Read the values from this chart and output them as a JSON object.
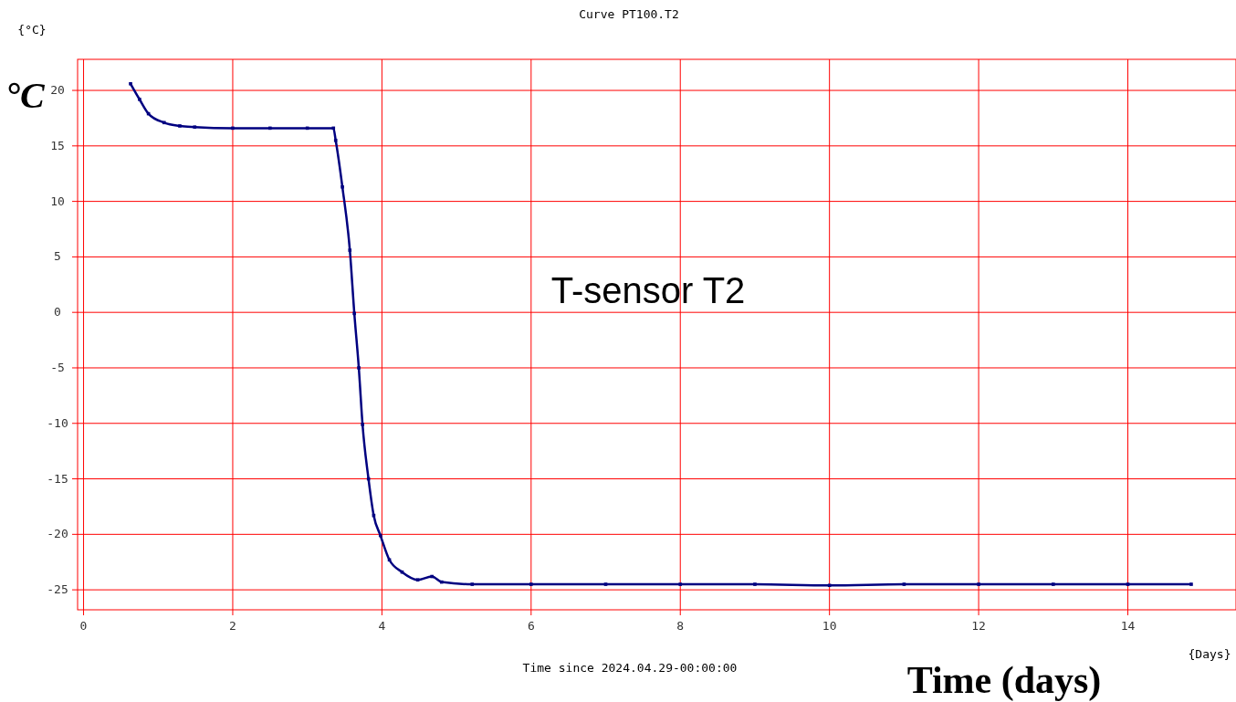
{
  "chart_data": {
    "type": "line",
    "title": "Curve PT100.T2",
    "xlabel": "Time since 2024.04.29-00:00:00",
    "ylabel": "{°C}",
    "annotations": [
      "{Days}",
      "°C",
      "T-sensor T2",
      "Time (days)"
    ],
    "x": [
      0.63,
      0.75,
      0.87,
      1.08,
      1.29,
      1.49,
      2.0,
      2.5,
      3.0,
      3.35,
      3.38,
      3.47,
      3.57,
      3.63,
      3.69,
      3.74,
      3.82,
      3.89,
      3.98,
      4.1,
      4.27,
      4.48,
      4.67,
      4.8,
      5.21,
      6.0,
      7.0,
      8.0,
      9.0,
      10.0,
      11.0,
      12.0,
      13.0,
      14.0,
      14.85
    ],
    "series": [
      {
        "color": "#000080",
        "values": [
          20.6,
          19.2,
          17.9,
          17.1,
          16.8,
          16.7,
          16.6,
          16.6,
          16.6,
          16.6,
          15.5,
          11.3,
          5.6,
          -0.1,
          -5.0,
          -10.1,
          -15.0,
          -18.3,
          -20.1,
          -22.3,
          -23.4,
          -24.1,
          -23.8,
          -24.3,
          -24.5,
          -24.5,
          -24.5,
          -24.5,
          -24.5,
          -24.6,
          -24.5,
          -24.5,
          -24.5,
          -24.5,
          -24.5
        ]
      }
    ],
    "xlim": [
      -0.08,
      15.45
    ],
    "xticks": [
      0,
      2,
      4,
      6,
      8,
      10,
      12,
      14
    ],
    "ylim": [
      -26.8,
      22.8
    ],
    "yticks": [
      -25,
      -20,
      -15,
      -10,
      -5,
      0,
      5,
      10,
      15,
      20
    ],
    "grid": true,
    "marker": "square",
    "line_style": "solid"
  }
}
